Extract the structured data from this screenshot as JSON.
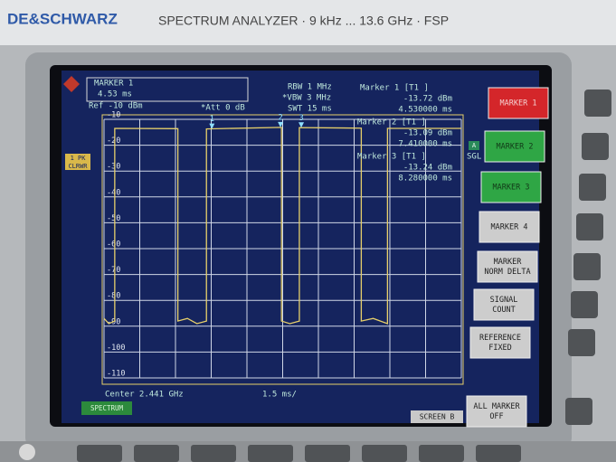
{
  "header": {
    "brand": "DE&SCHWARZ",
    "title": "SPECTRUM ANALYZER · 9 kHz ... 13.6 GHz · FSP"
  },
  "screen": {
    "marker_box": {
      "label": "MARKER 1",
      "value": "4.53 ms"
    },
    "ref": "Ref -10 dBm",
    "att": "*Att  0 dB",
    "rbw": "RBW 1 MHz",
    "vbw": "*VBW 3 MHz",
    "swt": "SWT 15 ms",
    "readouts": [
      {
        "label": "Marker 1 [T1 ]",
        "level": "-13.72 dBm",
        "time": "4.530000 ms"
      },
      {
        "label": "Marker 2 [T1 ]",
        "level": "-13.09 dBm",
        "time": "7.410000 ms"
      },
      {
        "label": "Marker 3 [T1 ]",
        "level": "-13.24 dBm",
        "time": "8.280000 ms"
      }
    ],
    "side_labels": {
      "trace": "1 PK",
      "mode": "CLRWR",
      "a": "A",
      "sgl": "SGL"
    },
    "center": "Center 2.441 GHz",
    "span": "1.5 ms/",
    "mode_tab": "SPECTRUM",
    "screen_tab": "SCREEN B",
    "chart_data": {
      "type": "line",
      "x": [
        0,
        0.2,
        0.45,
        0.45,
        3.1,
        3.1,
        3.5,
        3.9,
        4.3,
        4.3,
        7.45,
        7.45,
        7.8,
        8.2,
        8.2,
        10.8,
        10.8,
        11.3,
        11.9,
        11.9,
        15
      ],
      "series": [
        {
          "color": "#e6cf6a",
          "values": [
            -87,
            -89,
            -88,
            -13.5,
            -13.6,
            -88,
            -87,
            -89,
            -88,
            -13.7,
            -13.1,
            -88,
            -89,
            -88,
            -13.2,
            -13.4,
            -88,
            -87,
            -89,
            -13.5,
            -13.5
          ]
        }
      ],
      "markers": [
        {
          "name": "1",
          "x": 4.53,
          "y": -13.72
        },
        {
          "name": "2",
          "x": 7.41,
          "y": -13.09
        },
        {
          "name": "3",
          "x": 8.28,
          "y": -13.24
        }
      ],
      "xlim": [
        0,
        15
      ],
      "ylim": [
        -110,
        -10
      ],
      "yticks": [
        -10,
        -20,
        -30,
        -40,
        -50,
        -60,
        -70,
        -80,
        -90,
        -100,
        -110
      ],
      "xticks": [
        0,
        1.5,
        3,
        4.5,
        6,
        7.5,
        9,
        10.5,
        12,
        13.5,
        15
      ],
      "grid": true
    }
  },
  "softkeys": [
    [
      "MARKER 1"
    ],
    [
      "MARKER 2"
    ],
    [
      "MARKER 3"
    ],
    [
      "MARKER 4"
    ],
    [
      "MARKER",
      "NORM DELTA"
    ],
    [
      "SIGNAL",
      "COUNT"
    ],
    [
      "REFERENCE",
      "FIXED"
    ],
    [
      "ALL MARKER",
      "OFF"
    ]
  ]
}
